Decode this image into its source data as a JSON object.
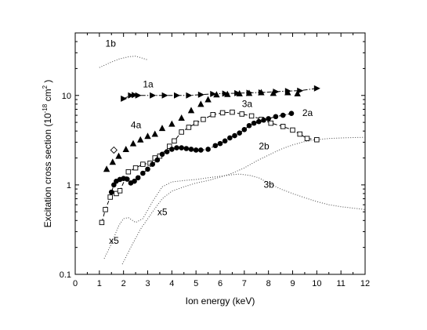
{
  "chart_data": {
    "type": "scatter",
    "title": "",
    "xlabel": "Ion energy (keV)",
    "ylabel": "Excitation cross section (10^-18 cm^2)",
    "ylabel_parts": {
      "main": "Excitation cross section (10",
      "exp": "-18",
      "unit": " cm",
      "unit_exp": "2",
      "close": " )"
    },
    "xlim": [
      0,
      12
    ],
    "ylim": [
      0.1,
      50
    ],
    "yscale": "log",
    "grid": false,
    "legend": "none",
    "x_ticks": [
      "0",
      "1",
      "2",
      "3",
      "4",
      "5",
      "6",
      "7",
      "8",
      "9",
      "10",
      "11",
      "12"
    ],
    "y_ticks": [
      {
        "value": 0.1,
        "label": "0.1"
      },
      {
        "value": 1,
        "label": "1"
      },
      {
        "value": 10,
        "label": "10"
      }
    ],
    "series": [
      {
        "key": "1a",
        "marker": "triangle-right",
        "line": "dashdot",
        "points": [
          [
            2.0,
            9.2
          ],
          [
            2.3,
            10.0
          ],
          [
            2.45,
            10.1
          ],
          [
            2.6,
            10.0
          ],
          [
            3.2,
            10.0
          ],
          [
            3.7,
            10.0
          ],
          [
            4.2,
            10.0
          ],
          [
            4.7,
            10.0
          ],
          [
            5.2,
            10.2
          ],
          [
            5.7,
            10.4
          ],
          [
            6.2,
            10.5
          ],
          [
            6.7,
            10.6
          ],
          [
            7.2,
            10.7
          ],
          [
            7.7,
            10.8
          ],
          [
            8.3,
            11.0
          ],
          [
            8.8,
            11.2
          ],
          [
            9.3,
            11.3
          ],
          [
            10.0,
            12.0
          ]
        ]
      },
      {
        "key": "4a",
        "marker": "triangle-up",
        "line": "none",
        "points": [
          [
            1.3,
            1.5
          ],
          [
            1.55,
            1.8
          ],
          [
            1.8,
            2.1
          ],
          [
            2.1,
            2.5
          ],
          [
            2.4,
            2.9
          ],
          [
            2.7,
            3.2
          ],
          [
            3.0,
            3.5
          ],
          [
            3.3,
            3.7
          ],
          [
            3.6,
            4.3
          ],
          [
            4.0,
            4.8
          ],
          [
            4.4,
            5.6
          ],
          [
            4.8,
            6.8
          ],
          [
            5.2,
            8.0
          ],
          [
            5.5,
            9.0
          ],
          [
            5.85,
            10.2
          ],
          [
            6.3,
            10.3
          ],
          [
            6.8,
            10.5
          ],
          [
            7.2,
            10.6
          ],
          [
            7.7,
            10.8
          ],
          [
            8.2,
            10.6
          ],
          [
            8.8,
            10.8
          ],
          [
            9.2,
            10.5
          ]
        ]
      },
      {
        "key": "3a",
        "marker": "square-open",
        "line": "dash",
        "points": [
          [
            1.1,
            0.38
          ],
          [
            1.25,
            0.53
          ],
          [
            1.45,
            0.73
          ],
          [
            1.7,
            0.8
          ],
          [
            1.85,
            0.86
          ],
          [
            2.2,
            1.4
          ],
          [
            2.5,
            1.55
          ],
          [
            2.8,
            1.7
          ],
          [
            3.1,
            1.75
          ],
          [
            3.3,
            2.0
          ],
          [
            3.5,
            2.1
          ],
          [
            3.9,
            2.7
          ],
          [
            4.1,
            3.1
          ],
          [
            4.4,
            3.9
          ],
          [
            4.7,
            4.4
          ],
          [
            5.0,
            4.9
          ],
          [
            5.3,
            5.4
          ],
          [
            5.7,
            6.1
          ],
          [
            6.1,
            6.4
          ],
          [
            6.5,
            6.5
          ],
          [
            6.9,
            6.2
          ],
          [
            7.3,
            5.9
          ],
          [
            7.7,
            5.4
          ],
          [
            8.1,
            4.9
          ],
          [
            8.6,
            4.5
          ],
          [
            9.0,
            4.1
          ],
          [
            9.3,
            3.7
          ],
          [
            9.6,
            3.3
          ],
          [
            10.0,
            3.2
          ]
        ]
      },
      {
        "key": "2a",
        "marker": "circle-filled",
        "line": "dashdot",
        "points": [
          [
            1.5,
            0.83
          ],
          [
            1.6,
            1.0
          ],
          [
            1.7,
            1.1
          ],
          [
            1.85,
            1.15
          ],
          [
            2.0,
            1.18
          ],
          [
            2.15,
            1.16
          ],
          [
            2.3,
            1.05
          ],
          [
            2.45,
            1.1
          ],
          [
            2.6,
            1.2
          ],
          [
            2.8,
            1.35
          ],
          [
            3.0,
            1.5
          ],
          [
            3.2,
            1.7
          ],
          [
            3.4,
            1.9
          ],
          [
            3.6,
            2.2
          ],
          [
            3.8,
            2.35
          ],
          [
            4.0,
            2.5
          ],
          [
            4.2,
            2.6
          ],
          [
            4.4,
            2.6
          ],
          [
            4.6,
            2.55
          ],
          [
            4.8,
            2.5
          ],
          [
            5.0,
            2.45
          ],
          [
            5.2,
            2.45
          ],
          [
            5.5,
            2.5
          ],
          [
            5.8,
            2.75
          ],
          [
            6.0,
            2.9
          ],
          [
            6.2,
            3.1
          ],
          [
            6.4,
            3.35
          ],
          [
            6.6,
            3.55
          ],
          [
            6.8,
            3.8
          ],
          [
            7.0,
            4.15
          ],
          [
            7.2,
            4.6
          ],
          [
            7.4,
            4.9
          ],
          [
            7.6,
            5.1
          ],
          [
            7.8,
            5.3
          ],
          [
            8.0,
            5.5
          ],
          [
            8.3,
            5.8
          ],
          [
            8.6,
            6.0
          ],
          [
            8.95,
            6.3
          ]
        ]
      },
      {
        "key": "1b",
        "marker": "none",
        "line": "dotted",
        "points": [
          [
            1.0,
            20.5
          ],
          [
            1.4,
            23.0
          ],
          [
            1.8,
            25.5
          ],
          [
            2.2,
            27.0
          ],
          [
            2.5,
            27.5
          ],
          [
            2.8,
            26.0
          ],
          [
            3.0,
            25.0
          ]
        ]
      },
      {
        "key": "2b",
        "marker": "none",
        "line": "dotted",
        "points": [
          [
            1.95,
            0.13
          ],
          [
            2.3,
            0.2
          ],
          [
            2.7,
            0.32
          ],
          [
            3.2,
            0.5
          ],
          [
            3.6,
            0.7
          ],
          [
            4.0,
            0.85
          ],
          [
            4.5,
            0.95
          ],
          [
            5.0,
            1.05
          ],
          [
            5.5,
            1.12
          ],
          [
            6.0,
            1.22
          ],
          [
            6.5,
            1.35
          ],
          [
            7.0,
            1.55
          ],
          [
            7.5,
            1.85
          ],
          [
            8.0,
            2.15
          ],
          [
            8.5,
            2.5
          ],
          [
            9.0,
            2.8
          ],
          [
            9.5,
            3.05
          ],
          [
            10.0,
            3.2
          ],
          [
            10.5,
            3.3
          ],
          [
            11.0,
            3.35
          ],
          [
            11.5,
            3.38
          ],
          [
            12.0,
            3.4
          ]
        ]
      },
      {
        "key": "3b",
        "marker": "none",
        "line": "dotted",
        "points": [
          [
            1.2,
            0.15
          ],
          [
            1.5,
            0.22
          ],
          [
            1.8,
            0.35
          ],
          [
            2.0,
            0.42
          ],
          [
            2.2,
            0.43
          ],
          [
            2.5,
            0.38
          ],
          [
            2.8,
            0.42
          ],
          [
            3.2,
            0.65
          ],
          [
            3.6,
            0.95
          ],
          [
            4.0,
            1.08
          ],
          [
            4.5,
            1.12
          ],
          [
            5.0,
            1.15
          ],
          [
            5.5,
            1.2
          ],
          [
            6.0,
            1.25
          ],
          [
            6.5,
            1.3
          ],
          [
            6.8,
            1.32
          ],
          [
            7.2,
            1.28
          ],
          [
            7.6,
            1.2
          ],
          [
            8.0,
            1.05
          ],
          [
            8.5,
            0.9
          ],
          [
            9.0,
            0.8
          ],
          [
            9.5,
            0.72
          ],
          [
            10.0,
            0.65
          ],
          [
            10.5,
            0.6
          ],
          [
            11.0,
            0.57
          ],
          [
            11.5,
            0.55
          ],
          [
            12.0,
            0.53
          ]
        ]
      },
      {
        "key": "open-diamond",
        "marker": "diamond-open",
        "line": "none",
        "points": [
          [
            1.6,
            2.45
          ]
        ]
      }
    ],
    "annotations": [
      {
        "text": "1b",
        "x": 1.25,
        "y": 35
      },
      {
        "text": "1a",
        "x": 2.8,
        "y": 12.3
      },
      {
        "text": "3a",
        "x": 6.9,
        "y": 7.4
      },
      {
        "text": "4a",
        "x": 2.3,
        "y": 4.3
      },
      {
        "text": "2a",
        "x": 9.4,
        "y": 5.9
      },
      {
        "text": "2b",
        "x": 7.6,
        "y": 2.5
      },
      {
        "text": "3b",
        "x": 7.8,
        "y": 0.93
      },
      {
        "text": "x5",
        "x": 3.4,
        "y": 0.46
      },
      {
        "text": "x5",
        "x": 1.4,
        "y": 0.22
      }
    ]
  }
}
